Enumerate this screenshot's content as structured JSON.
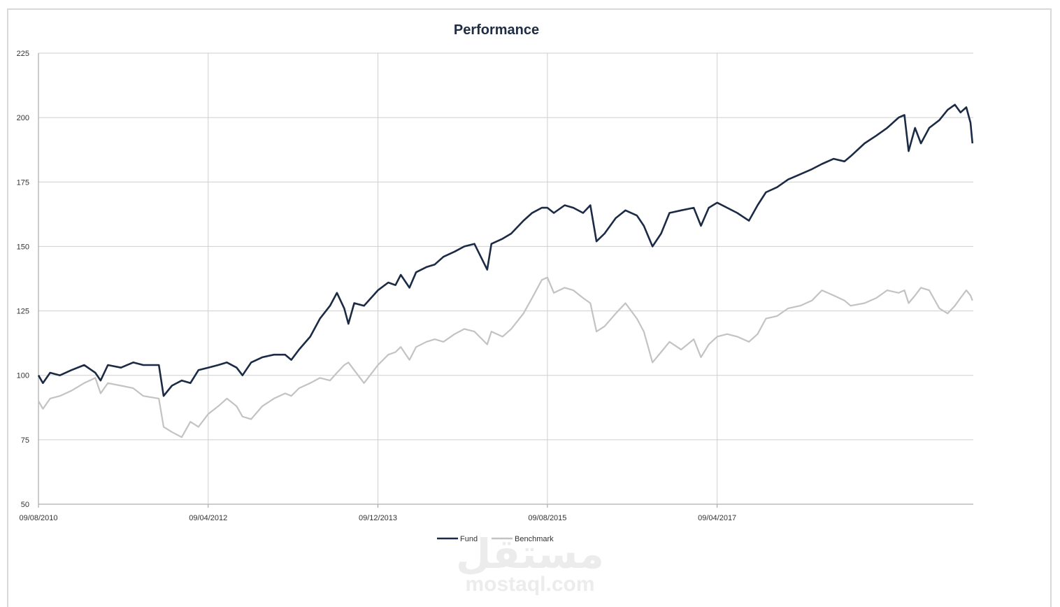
{
  "chart_data": {
    "type": "line",
    "title": "Performance",
    "xlabel": "",
    "ylabel": "",
    "ylim": [
      50,
      225
    ],
    "yticks": [
      50,
      75,
      100,
      125,
      150,
      175,
      200,
      225
    ],
    "xlim": [
      "2010-08-09",
      "2019-10-15"
    ],
    "xticks": [
      "2010-08-09",
      "2012-04-09",
      "2013-12-09",
      "2015-08-09",
      "2017-04-09"
    ],
    "xtick_labels": [
      "09/08/2010",
      "09/04/2012",
      "09/12/2013",
      "09/08/2015",
      "09/04/2017"
    ],
    "grid": true,
    "legend": "bottom-center",
    "series": [
      {
        "name": "Fund",
        "color": "#1c2b45",
        "points": [
          [
            "2010-08-09",
            100
          ],
          [
            "2010-08-25",
            97
          ],
          [
            "2010-09-20",
            101
          ],
          [
            "2010-10-25",
            100
          ],
          [
            "2010-12-05",
            102
          ],
          [
            "2011-01-20",
            104
          ],
          [
            "2011-03-01",
            101
          ],
          [
            "2011-03-20",
            98
          ],
          [
            "2011-04-15",
            104
          ],
          [
            "2011-06-01",
            103
          ],
          [
            "2011-07-15",
            105
          ],
          [
            "2011-08-20",
            104
          ],
          [
            "2011-10-15",
            104
          ],
          [
            "2011-11-01",
            92
          ],
          [
            "2011-12-01",
            96
          ],
          [
            "2012-01-05",
            98
          ],
          [
            "2012-02-05",
            97
          ],
          [
            "2012-03-05",
            102
          ],
          [
            "2012-04-09",
            103
          ],
          [
            "2012-05-15",
            104
          ],
          [
            "2012-06-15",
            105
          ],
          [
            "2012-07-20",
            103
          ],
          [
            "2012-08-10",
            100
          ],
          [
            "2012-09-10",
            105
          ],
          [
            "2012-10-20",
            107
          ],
          [
            "2012-12-01",
            108
          ],
          [
            "2013-01-10",
            108
          ],
          [
            "2013-02-01",
            106
          ],
          [
            "2013-03-01",
            110
          ],
          [
            "2013-04-10",
            115
          ],
          [
            "2013-05-15",
            122
          ],
          [
            "2013-06-20",
            127
          ],
          [
            "2013-07-15",
            132
          ],
          [
            "2013-08-10",
            126
          ],
          [
            "2013-08-25",
            120
          ],
          [
            "2013-09-15",
            128
          ],
          [
            "2013-10-20",
            127
          ],
          [
            "2013-12-09",
            133
          ],
          [
            "2014-01-15",
            136
          ],
          [
            "2014-02-10",
            135
          ],
          [
            "2014-03-01",
            139
          ],
          [
            "2014-04-01",
            134
          ],
          [
            "2014-04-25",
            140
          ],
          [
            "2014-06-01",
            142
          ],
          [
            "2014-07-01",
            143
          ],
          [
            "2014-08-01",
            146
          ],
          [
            "2014-09-10",
            148
          ],
          [
            "2014-10-15",
            150
          ],
          [
            "2014-11-20",
            151
          ],
          [
            "2015-01-05",
            141
          ],
          [
            "2015-01-20",
            151
          ],
          [
            "2015-03-01",
            153
          ],
          [
            "2015-04-01",
            155
          ],
          [
            "2015-05-15",
            160
          ],
          [
            "2015-06-15",
            163
          ],
          [
            "2015-07-20",
            165
          ],
          [
            "2015-08-09",
            165
          ],
          [
            "2015-09-01",
            163
          ],
          [
            "2015-10-10",
            166
          ],
          [
            "2015-11-10",
            165
          ],
          [
            "2015-12-15",
            163
          ],
          [
            "2016-01-10",
            166
          ],
          [
            "2016-02-01",
            152
          ],
          [
            "2016-03-01",
            155
          ],
          [
            "2016-04-10",
            161
          ],
          [
            "2016-05-15",
            164
          ],
          [
            "2016-06-25",
            162
          ],
          [
            "2016-07-20",
            158
          ],
          [
            "2016-08-20",
            150
          ],
          [
            "2016-09-20",
            155
          ],
          [
            "2016-10-20",
            163
          ],
          [
            "2016-12-01",
            164
          ],
          [
            "2017-01-15",
            165
          ],
          [
            "2017-02-10",
            158
          ],
          [
            "2017-03-10",
            165
          ],
          [
            "2017-04-09",
            167
          ],
          [
            "2017-05-15",
            165
          ],
          [
            "2017-06-20",
            163
          ],
          [
            "2017-08-01",
            160
          ],
          [
            "2017-09-01",
            166
          ],
          [
            "2017-10-01",
            171
          ],
          [
            "2017-11-10",
            173
          ],
          [
            "2017-12-20",
            176
          ],
          [
            "2018-02-01",
            178
          ],
          [
            "2018-03-15",
            180
          ],
          [
            "2018-04-20",
            182
          ],
          [
            "2018-06-01",
            184
          ],
          [
            "2018-07-10",
            183
          ],
          [
            "2018-08-01",
            185
          ],
          [
            "2018-09-20",
            190
          ],
          [
            "2018-11-01",
            193
          ],
          [
            "2018-12-10",
            196
          ],
          [
            "2019-01-20",
            200
          ],
          [
            "2019-02-10",
            201
          ],
          [
            "2019-02-25",
            187
          ],
          [
            "2019-03-20",
            196
          ],
          [
            "2019-04-10",
            190
          ],
          [
            "2019-05-10",
            196
          ],
          [
            "2019-06-15",
            199
          ],
          [
            "2019-07-15",
            203
          ],
          [
            "2019-08-10",
            205
          ],
          [
            "2019-08-30",
            202
          ],
          [
            "2019-09-20",
            204
          ],
          [
            "2019-10-05",
            198
          ],
          [
            "2019-10-12",
            190
          ]
        ]
      },
      {
        "name": "Benchmark",
        "color": "#c3c3c3",
        "points": [
          [
            "2010-08-09",
            90
          ],
          [
            "2010-08-25",
            87
          ],
          [
            "2010-09-20",
            91
          ],
          [
            "2010-10-25",
            92
          ],
          [
            "2010-12-05",
            94
          ],
          [
            "2011-01-20",
            97
          ],
          [
            "2011-03-01",
            99
          ],
          [
            "2011-03-20",
            93
          ],
          [
            "2011-04-15",
            97
          ],
          [
            "2011-06-01",
            96
          ],
          [
            "2011-07-15",
            95
          ],
          [
            "2011-08-20",
            92
          ],
          [
            "2011-10-15",
            91
          ],
          [
            "2011-11-01",
            80
          ],
          [
            "2011-12-01",
            78
          ],
          [
            "2012-01-05",
            76
          ],
          [
            "2012-02-05",
            82
          ],
          [
            "2012-03-05",
            80
          ],
          [
            "2012-04-09",
            85
          ],
          [
            "2012-05-15",
            88
          ],
          [
            "2012-06-15",
            91
          ],
          [
            "2012-07-20",
            88
          ],
          [
            "2012-08-10",
            84
          ],
          [
            "2012-09-10",
            83
          ],
          [
            "2012-10-20",
            88
          ],
          [
            "2012-12-01",
            91
          ],
          [
            "2013-01-10",
            93
          ],
          [
            "2013-02-01",
            92
          ],
          [
            "2013-03-01",
            95
          ],
          [
            "2013-04-10",
            97
          ],
          [
            "2013-05-15",
            99
          ],
          [
            "2013-06-20",
            98
          ],
          [
            "2013-07-15",
            101
          ],
          [
            "2013-08-10",
            104
          ],
          [
            "2013-08-25",
            105
          ],
          [
            "2013-09-15",
            102
          ],
          [
            "2013-10-20",
            97
          ],
          [
            "2013-12-09",
            104
          ],
          [
            "2014-01-15",
            108
          ],
          [
            "2014-02-10",
            109
          ],
          [
            "2014-03-01",
            111
          ],
          [
            "2014-04-01",
            106
          ],
          [
            "2014-04-25",
            111
          ],
          [
            "2014-06-01",
            113
          ],
          [
            "2014-07-01",
            114
          ],
          [
            "2014-08-01",
            113
          ],
          [
            "2014-09-10",
            116
          ],
          [
            "2014-10-15",
            118
          ],
          [
            "2014-11-20",
            117
          ],
          [
            "2015-01-05",
            112
          ],
          [
            "2015-01-20",
            117
          ],
          [
            "2015-03-01",
            115
          ],
          [
            "2015-04-01",
            118
          ],
          [
            "2015-05-15",
            124
          ],
          [
            "2015-06-15",
            130
          ],
          [
            "2015-07-20",
            137
          ],
          [
            "2015-08-09",
            138
          ],
          [
            "2015-09-01",
            132
          ],
          [
            "2015-10-10",
            134
          ],
          [
            "2015-11-10",
            133
          ],
          [
            "2015-12-15",
            130
          ],
          [
            "2016-01-10",
            128
          ],
          [
            "2016-02-01",
            117
          ],
          [
            "2016-03-01",
            119
          ],
          [
            "2016-04-10",
            124
          ],
          [
            "2016-05-15",
            128
          ],
          [
            "2016-06-25",
            122
          ],
          [
            "2016-07-20",
            117
          ],
          [
            "2016-08-20",
            105
          ],
          [
            "2016-09-20",
            109
          ],
          [
            "2016-10-20",
            113
          ],
          [
            "2016-12-01",
            110
          ],
          [
            "2017-01-15",
            114
          ],
          [
            "2017-02-10",
            107
          ],
          [
            "2017-03-10",
            112
          ],
          [
            "2017-04-09",
            115
          ],
          [
            "2017-05-15",
            116
          ],
          [
            "2017-06-20",
            115
          ],
          [
            "2017-08-01",
            113
          ],
          [
            "2017-09-01",
            116
          ],
          [
            "2017-10-01",
            122
          ],
          [
            "2017-11-10",
            123
          ],
          [
            "2017-12-20",
            126
          ],
          [
            "2018-02-01",
            127
          ],
          [
            "2018-03-15",
            129
          ],
          [
            "2018-04-20",
            133
          ],
          [
            "2018-06-01",
            131
          ],
          [
            "2018-07-10",
            129
          ],
          [
            "2018-08-01",
            127
          ],
          [
            "2018-09-20",
            128
          ],
          [
            "2018-11-01",
            130
          ],
          [
            "2018-12-10",
            133
          ],
          [
            "2019-01-20",
            132
          ],
          [
            "2019-02-10",
            133
          ],
          [
            "2019-02-25",
            128
          ],
          [
            "2019-03-20",
            131
          ],
          [
            "2019-04-10",
            134
          ],
          [
            "2019-05-10",
            133
          ],
          [
            "2019-06-15",
            126
          ],
          [
            "2019-07-15",
            124
          ],
          [
            "2019-08-10",
            127
          ],
          [
            "2019-08-30",
            130
          ],
          [
            "2019-09-20",
            133
          ],
          [
            "2019-10-05",
            131
          ],
          [
            "2019-10-12",
            129
          ]
        ]
      }
    ]
  },
  "watermark": {
    "arabic": "مستقل",
    "latin": "mostaql.com"
  }
}
